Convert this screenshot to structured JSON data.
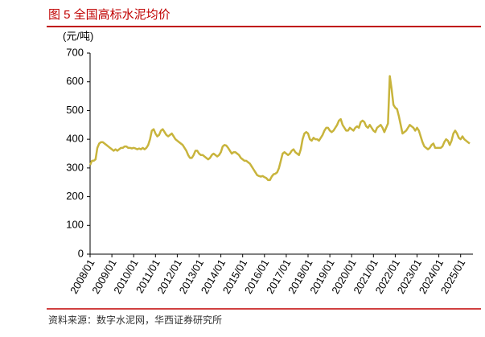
{
  "chart_data": {
    "type": "line",
    "title": "图 5 全国高标水泥均价",
    "unit_label": "(元/吨)",
    "source": "资料来源：数字水泥网，华西证券研究所",
    "color": "#c8b43c",
    "x": [
      "2008/01",
      "2008/02",
      "2008/03",
      "2008/04",
      "2008/05",
      "2008/06",
      "2008/07",
      "2008/08",
      "2008/09",
      "2008/10",
      "2008/11",
      "2008/12",
      "2009/01",
      "2009/02",
      "2009/03",
      "2009/04",
      "2009/05",
      "2009/06",
      "2009/07",
      "2009/08",
      "2009/09",
      "2009/10",
      "2009/11",
      "2009/12",
      "2010/01",
      "2010/02",
      "2010/03",
      "2010/04",
      "2010/05",
      "2010/06",
      "2010/07",
      "2010/08",
      "2010/09",
      "2010/10",
      "2010/11",
      "2010/12",
      "2011/01",
      "2011/02",
      "2011/03",
      "2011/04",
      "2011/05",
      "2011/06",
      "2011/07",
      "2011/08",
      "2011/09",
      "2011/10",
      "2011/11",
      "2011/12",
      "2012/01",
      "2012/02",
      "2012/03",
      "2012/04",
      "2012/05",
      "2012/06",
      "2012/07",
      "2012/08",
      "2012/09",
      "2012/10",
      "2012/11",
      "2012/12",
      "2013/01",
      "2013/02",
      "2013/03",
      "2013/04",
      "2013/05",
      "2013/06",
      "2013/07",
      "2013/08",
      "2013/09",
      "2013/10",
      "2013/11",
      "2013/12",
      "2014/01",
      "2014/02",
      "2014/03",
      "2014/04",
      "2014/05",
      "2014/06",
      "2014/07",
      "2014/08",
      "2014/09",
      "2014/10",
      "2014/11",
      "2014/12",
      "2015/01",
      "2015/02",
      "2015/03",
      "2015/04",
      "2015/05",
      "2015/06",
      "2015/07",
      "2015/08",
      "2015/09",
      "2015/10",
      "2015/11",
      "2015/12",
      "2016/01",
      "2016/02",
      "2016/03",
      "2016/04",
      "2016/05",
      "2016/06",
      "2016/07",
      "2016/08",
      "2016/09",
      "2016/10",
      "2016/11",
      "2016/12",
      "2017/01",
      "2017/02",
      "2017/03",
      "2017/04",
      "2017/05",
      "2017/06",
      "2017/07",
      "2017/08",
      "2017/09",
      "2017/10",
      "2017/11",
      "2017/12",
      "2018/01",
      "2018/02",
      "2018/03",
      "2018/04",
      "2018/05",
      "2018/06",
      "2018/07",
      "2018/08",
      "2018/09",
      "2018/10",
      "2018/11",
      "2018/12",
      "2019/01",
      "2019/02",
      "2019/03",
      "2019/04",
      "2019/05",
      "2019/06",
      "2019/07",
      "2019/08",
      "2019/09",
      "2019/10",
      "2019/11",
      "2019/12",
      "2020/01",
      "2020/02",
      "2020/03",
      "2020/04",
      "2020/05",
      "2020/06",
      "2020/07",
      "2020/08",
      "2020/09",
      "2020/10",
      "2020/11",
      "2020/12",
      "2021/01",
      "2021/02",
      "2021/03",
      "2021/04",
      "2021/05",
      "2021/06",
      "2021/07",
      "2021/08",
      "2021/09",
      "2021/10",
      "2021/11",
      "2021/12",
      "2022/01",
      "2022/02",
      "2022/03",
      "2022/04",
      "2022/05",
      "2022/06",
      "2022/07",
      "2022/08",
      "2022/09",
      "2022/10",
      "2022/11",
      "2022/12",
      "2023/01",
      "2023/02",
      "2023/03",
      "2023/04",
      "2023/05",
      "2023/06",
      "2023/07",
      "2023/08",
      "2023/09",
      "2023/10",
      "2023/11",
      "2023/12",
      "2024/01",
      "2024/02",
      "2024/03",
      "2024/04",
      "2024/05",
      "2024/06",
      "2024/07",
      "2024/08",
      "2024/09",
      "2024/10",
      "2024/11",
      "2024/12",
      "2025/01",
      "2025/02",
      "2025/03",
      "2025/04",
      "2025/05",
      "2025/06"
    ],
    "values": [
      310,
      325,
      325,
      330,
      370,
      385,
      390,
      390,
      385,
      380,
      375,
      370,
      365,
      360,
      365,
      360,
      365,
      370,
      370,
      375,
      375,
      370,
      370,
      368,
      370,
      368,
      365,
      368,
      365,
      370,
      365,
      370,
      380,
      400,
      430,
      435,
      420,
      410,
      415,
      430,
      435,
      425,
      415,
      410,
      415,
      420,
      410,
      400,
      395,
      390,
      385,
      380,
      370,
      360,
      345,
      335,
      335,
      345,
      360,
      360,
      350,
      345,
      345,
      340,
      335,
      330,
      335,
      345,
      350,
      345,
      340,
      345,
      355,
      375,
      380,
      378,
      370,
      360,
      350,
      355,
      355,
      350,
      345,
      335,
      330,
      325,
      325,
      320,
      315,
      305,
      295,
      285,
      275,
      272,
      270,
      272,
      268,
      265,
      258,
      258,
      270,
      278,
      280,
      285,
      300,
      325,
      350,
      355,
      350,
      345,
      350,
      360,
      365,
      355,
      350,
      345,
      365,
      400,
      420,
      425,
      420,
      400,
      395,
      405,
      400,
      400,
      395,
      405,
      415,
      430,
      440,
      440,
      430,
      425,
      430,
      440,
      450,
      465,
      470,
      450,
      440,
      430,
      430,
      440,
      435,
      430,
      440,
      445,
      440,
      460,
      465,
      460,
      445,
      440,
      450,
      440,
      430,
      425,
      440,
      445,
      450,
      440,
      425,
      440,
      455,
      620,
      575,
      520,
      510,
      505,
      480,
      450,
      420,
      425,
      430,
      440,
      450,
      445,
      440,
      430,
      440,
      430,
      410,
      390,
      375,
      370,
      365,
      370,
      380,
      385,
      370,
      370,
      370,
      370,
      375,
      390,
      400,
      395,
      380,
      395,
      420,
      430,
      420,
      405,
      400,
      410,
      400,
      395,
      390,
      385
    ],
    "ylim": [
      0,
      700
    ],
    "yticks": [
      0,
      100,
      200,
      300,
      400,
      500,
      600,
      700
    ]
  }
}
